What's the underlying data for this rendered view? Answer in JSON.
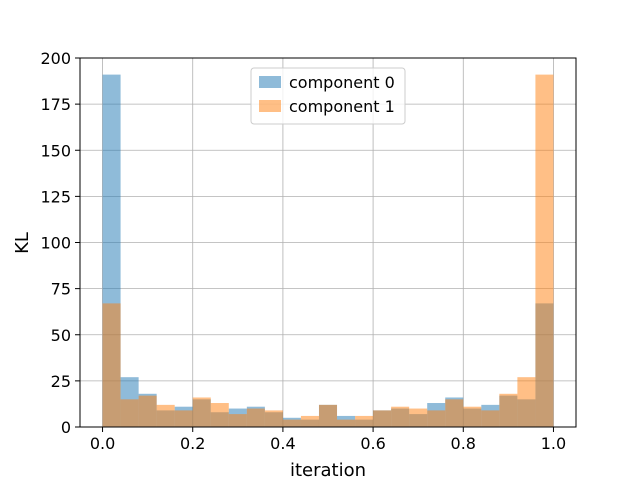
{
  "chart_data": {
    "type": "bar",
    "subtype": "histogram",
    "xlabel": "iteration",
    "ylabel": "KL",
    "xlim": [
      -0.05,
      1.05
    ],
    "ylim": [
      0,
      200
    ],
    "xticks": [
      0.0,
      0.2,
      0.4,
      0.6,
      0.8,
      1.0
    ],
    "xtick_labels": [
      "0.0",
      "0.2",
      "0.4",
      "0.6",
      "0.8",
      "1.0"
    ],
    "yticks": [
      0,
      25,
      50,
      75,
      100,
      125,
      150,
      175,
      200
    ],
    "ytick_labels": [
      "0",
      "25",
      "50",
      "75",
      "100",
      "125",
      "150",
      "175",
      "200"
    ],
    "grid": true,
    "legend_position": "top-center",
    "bin_edges": [
      0.0,
      0.04,
      0.08,
      0.12,
      0.16,
      0.2,
      0.24,
      0.28,
      0.32,
      0.36,
      0.4,
      0.44,
      0.48,
      0.52,
      0.56,
      0.6,
      0.64,
      0.68,
      0.72,
      0.76,
      0.8,
      0.84,
      0.88,
      0.92,
      0.96,
      1.0
    ],
    "alpha": 0.5,
    "series": [
      {
        "name": "component 0",
        "color": "#1f77b4",
        "values": [
          191,
          27,
          18,
          9,
          11,
          15,
          8,
          10,
          11,
          8,
          5,
          4,
          12,
          6,
          4,
          9,
          10,
          7,
          13,
          16,
          10,
          12,
          17,
          15,
          67
        ]
      },
      {
        "name": "component 1",
        "color": "#ff7f0e",
        "values": [
          67,
          15,
          17,
          12,
          9,
          16,
          13,
          7,
          10,
          9,
          4,
          6,
          12,
          4,
          6,
          9,
          11,
          10,
          9,
          15,
          11,
          9,
          18,
          27,
          191
        ]
      }
    ]
  }
}
